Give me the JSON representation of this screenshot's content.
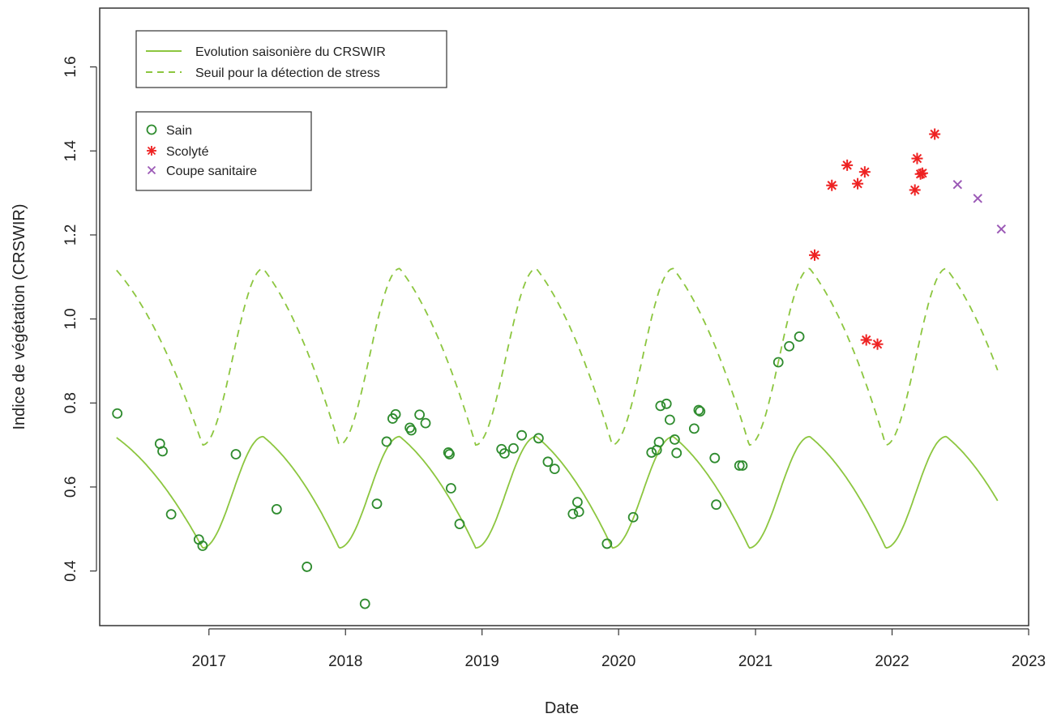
{
  "chart_data": {
    "type": "scatter",
    "title": "",
    "xlabel": "Date",
    "ylabel": "Indice de végétation (CRSWIR)",
    "xlim": [
      "2016-03-15",
      "2023-01-01"
    ],
    "ylim": [
      0.27,
      1.74
    ],
    "x_ticks": [
      {
        "date": "2017-01-01",
        "label": "2017"
      },
      {
        "date": "2018-01-01",
        "label": "2018"
      },
      {
        "date": "2019-01-01",
        "label": "2019"
      },
      {
        "date": "2020-01-01",
        "label": "2020"
      },
      {
        "date": "2021-01-01",
        "label": "2021"
      },
      {
        "date": "2022-01-01",
        "label": "2022"
      },
      {
        "date": "2023-01-01",
        "label": "2023"
      }
    ],
    "y_ticks": [
      {
        "value": 0.4,
        "label": "0.4"
      },
      {
        "value": 0.6,
        "label": "0.6"
      },
      {
        "value": 0.8,
        "label": "0.8"
      },
      {
        "value": 1.0,
        "label": "1.0"
      },
      {
        "value": 1.2,
        "label": "1.2"
      },
      {
        "value": 1.4,
        "label": "1.4"
      },
      {
        "value": 1.6,
        "label": "1.6"
      }
    ],
    "grid": false,
    "lines": [
      {
        "name": "Evolution saisonière du CRSWIR",
        "style": "solid",
        "color": "#8cc63f",
        "x_range": [
          "2016-04-29",
          "2022-10-10"
        ],
        "model": "seasonal",
        "peaks": [
          "2016-04-25",
          "2017-05-26",
          "2018-05-26",
          "2019-05-26",
          "2020-05-26",
          "2021-05-26",
          "2022-05-26"
        ],
        "troughs": [
          "2016-12-15",
          "2017-12-15",
          "2018-12-15",
          "2019-12-15",
          "2020-12-15",
          "2021-12-15",
          "2022-12-15"
        ],
        "max": 0.72,
        "min": 0.455
      },
      {
        "name": "Seuil pour la détection de stress",
        "style": "dashed",
        "color": "#8cc63f",
        "x_range": [
          "2016-04-29",
          "2022-10-10"
        ],
        "model": "seasonal",
        "peaks": [
          "2016-04-25",
          "2017-05-26",
          "2018-05-26",
          "2019-05-26",
          "2020-05-26",
          "2021-05-26",
          "2022-05-26"
        ],
        "troughs": [
          "2016-12-15",
          "2017-12-15",
          "2018-12-15",
          "2019-12-15",
          "2020-12-15",
          "2021-12-15",
          "2022-12-15"
        ],
        "max": 1.12,
        "min": 0.7
      }
    ],
    "series": [
      {
        "name": "Sain",
        "marker": "circle",
        "color": "#2e8b2e",
        "points": [
          [
            "2016-05-01",
            0.775
          ],
          [
            "2016-08-23",
            0.703
          ],
          [
            "2016-08-30",
            0.685
          ],
          [
            "2016-09-22",
            0.535
          ],
          [
            "2016-12-05",
            0.475
          ],
          [
            "2016-12-15",
            0.46
          ],
          [
            "2017-03-14",
            0.678
          ],
          [
            "2017-07-01",
            0.547
          ],
          [
            "2017-09-20",
            0.41
          ],
          [
            "2018-02-22",
            0.322
          ],
          [
            "2018-03-26",
            0.56
          ],
          [
            "2018-04-21",
            0.708
          ],
          [
            "2018-05-07",
            0.763
          ],
          [
            "2018-05-15",
            0.773
          ],
          [
            "2018-06-22",
            0.741
          ],
          [
            "2018-06-26",
            0.735
          ],
          [
            "2018-07-18",
            0.772
          ],
          [
            "2018-08-03",
            0.752
          ],
          [
            "2018-10-03",
            0.682
          ],
          [
            "2018-10-06",
            0.678
          ],
          [
            "2018-10-10",
            0.597
          ],
          [
            "2018-11-02",
            0.512
          ],
          [
            "2019-02-22",
            0.69
          ],
          [
            "2019-03-02",
            0.68
          ],
          [
            "2019-03-26",
            0.692
          ],
          [
            "2019-04-17",
            0.723
          ],
          [
            "2019-06-01",
            0.716
          ],
          [
            "2019-06-26",
            0.66
          ],
          [
            "2019-07-14",
            0.643
          ],
          [
            "2019-09-01",
            0.536
          ],
          [
            "2019-09-13",
            0.564
          ],
          [
            "2019-09-17",
            0.541
          ],
          [
            "2019-12-01",
            0.465
          ],
          [
            "2020-02-09",
            0.528
          ],
          [
            "2020-03-29",
            0.682
          ],
          [
            "2020-04-12",
            0.688
          ],
          [
            "2020-04-18",
            0.707
          ],
          [
            "2020-04-22",
            0.793
          ],
          [
            "2020-05-08",
            0.798
          ],
          [
            "2020-05-17",
            0.76
          ],
          [
            "2020-05-30",
            0.713
          ],
          [
            "2020-06-04",
            0.681
          ],
          [
            "2020-07-21",
            0.739
          ],
          [
            "2020-08-02",
            0.783
          ],
          [
            "2020-08-06",
            0.78
          ],
          [
            "2020-09-14",
            0.669
          ],
          [
            "2020-09-18",
            0.558
          ],
          [
            "2020-11-19",
            0.651
          ],
          [
            "2020-11-27",
            0.651
          ],
          [
            "2021-03-03",
            0.897
          ],
          [
            "2021-04-01",
            0.935
          ],
          [
            "2021-04-28",
            0.958
          ]
        ]
      },
      {
        "name": "Scolyté",
        "marker": "star",
        "color": "#ee2222",
        "points": [
          [
            "2021-06-08",
            1.152
          ],
          [
            "2021-07-24",
            1.318
          ],
          [
            "2021-09-03",
            1.366
          ],
          [
            "2021-10-01",
            1.322
          ],
          [
            "2021-10-20",
            1.35
          ],
          [
            "2021-10-24",
            0.95
          ],
          [
            "2021-11-23",
            0.94
          ],
          [
            "2022-03-03",
            1.307
          ],
          [
            "2022-03-09",
            1.382
          ],
          [
            "2022-03-18",
            1.345
          ],
          [
            "2022-03-23",
            1.347
          ],
          [
            "2022-04-25",
            1.44
          ]
        ]
      },
      {
        "name": "Coupe sanitaire",
        "marker": "cross",
        "color": "#9b59b6",
        "points": [
          [
            "2022-06-25",
            1.32
          ],
          [
            "2022-08-18",
            1.287
          ],
          [
            "2022-10-20",
            1.214
          ]
        ]
      }
    ],
    "legends": {
      "lines_box_position": "top-left",
      "points_box_position": "upper-left"
    }
  }
}
